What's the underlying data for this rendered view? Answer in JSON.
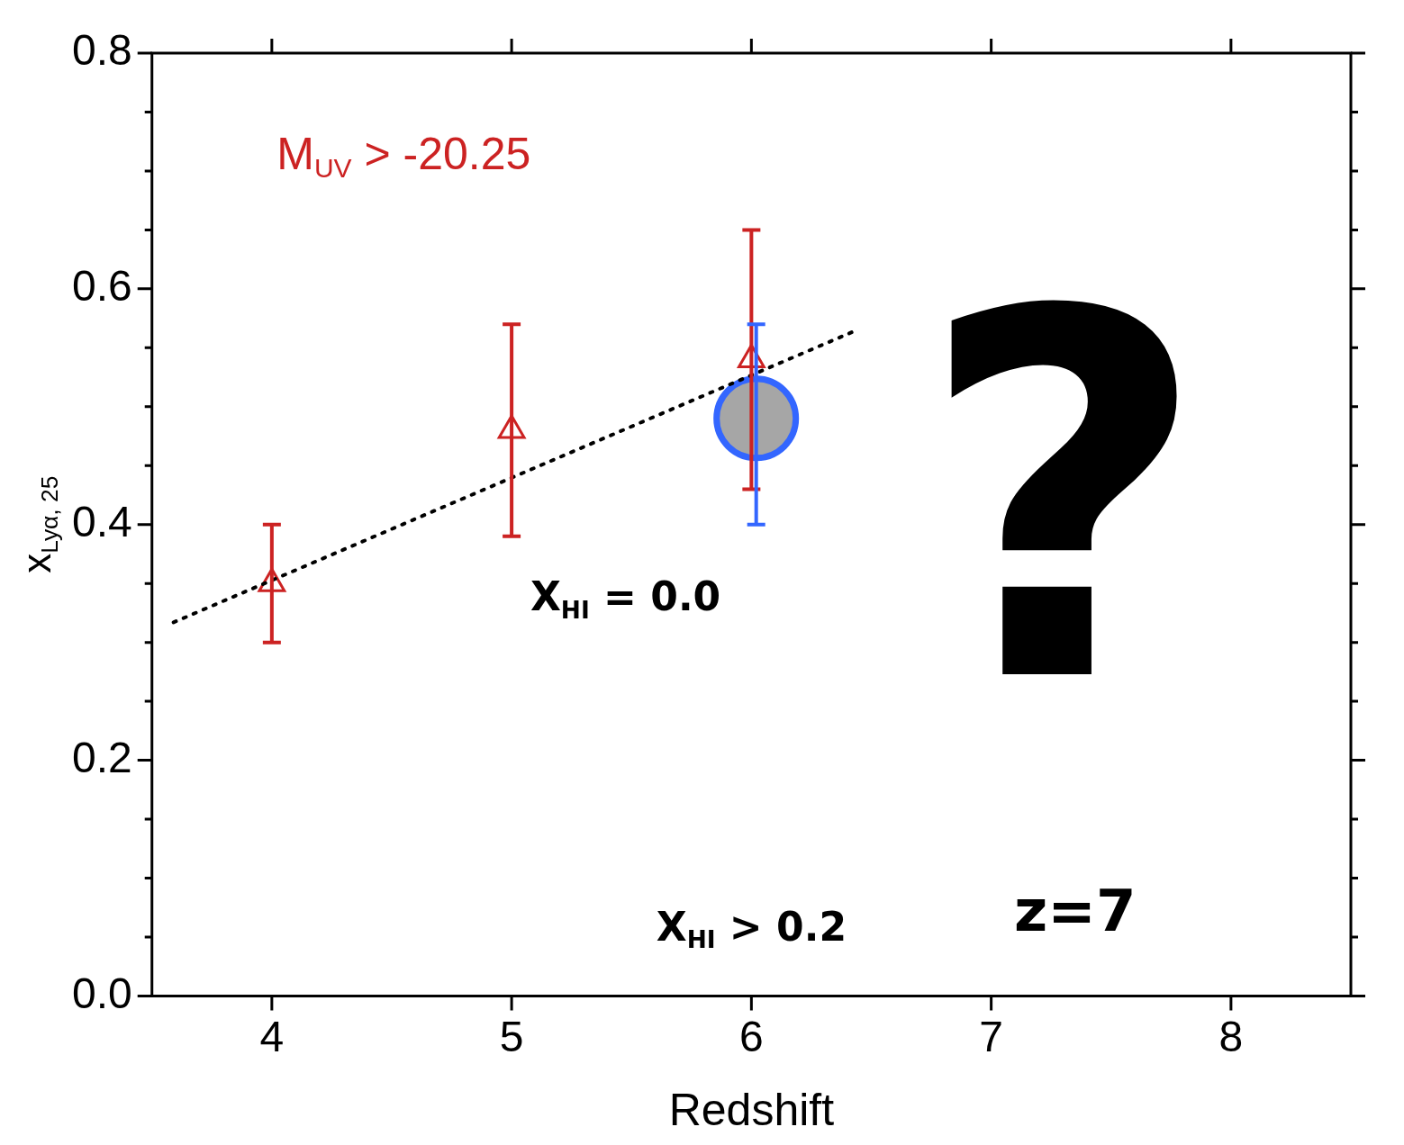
{
  "chart_data": {
    "type": "scatter",
    "xlabel": "Redshift",
    "ylabel": "x$_{Lyα, 25}$",
    "xlim": [
      3.5,
      8.5
    ],
    "xticks": [
      4,
      5,
      6,
      7,
      8
    ],
    "ylim": [
      0,
      0.8
    ],
    "yticks": [
      {
        "value": 0,
        "label": "0.0"
      },
      {
        "value": 0.05,
        "label": null
      },
      {
        "value": 0.1,
        "label": null
      },
      {
        "value": 0.15,
        "label": null
      },
      {
        "value": 0.2,
        "label": "0.2"
      },
      {
        "value": 0.25,
        "label": null
      },
      {
        "value": 0.3,
        "label": null
      },
      {
        "value": 0.35,
        "label": null
      },
      {
        "value": 0.4,
        "label": "0.4"
      },
      {
        "value": 0.45,
        "label": null
      },
      {
        "value": 0.5,
        "label": null
      },
      {
        "value": 0.55,
        "label": null
      },
      {
        "value": 0.6,
        "label": "0.6"
      },
      {
        "value": 0.65,
        "label": null
      },
      {
        "value": 0.7,
        "label": null
      },
      {
        "value": 0.75,
        "label": null
      },
      {
        "value": 0.8,
        "label": "0.8"
      }
    ],
    "grid": false,
    "annotations": [
      "M$_{UV}$ > -20.25",
      "X$_{HI}$ = 0.0",
      "X$_{HI}$ > 0.2",
      "z=7",
      "?"
    ],
    "series": [
      {
        "color": "#cc2222",
        "marker": "triangle",
        "x": [
          4,
          5,
          6
        ],
        "values": [
          0.35,
          0.48,
          0.54
        ],
        "errors": [
          [
            0.3,
            0.4
          ],
          [
            0.39,
            0.57
          ],
          [
            0.43,
            0.65
          ]
        ]
      },
      {
        "color": "#3366ff",
        "marker": "circle",
        "x": [
          6.02
        ],
        "values": [
          0.49
        ],
        "errors": [
          [
            0.4,
            0.57
          ]
        ]
      },
      {
        "type": "line",
        "color": "#000000",
        "marker": "none",
        "line_style": "dotted",
        "x": [
          3.59,
          6.44
        ],
        "values": [
          0.317,
          0.565
        ]
      }
    ]
  }
}
